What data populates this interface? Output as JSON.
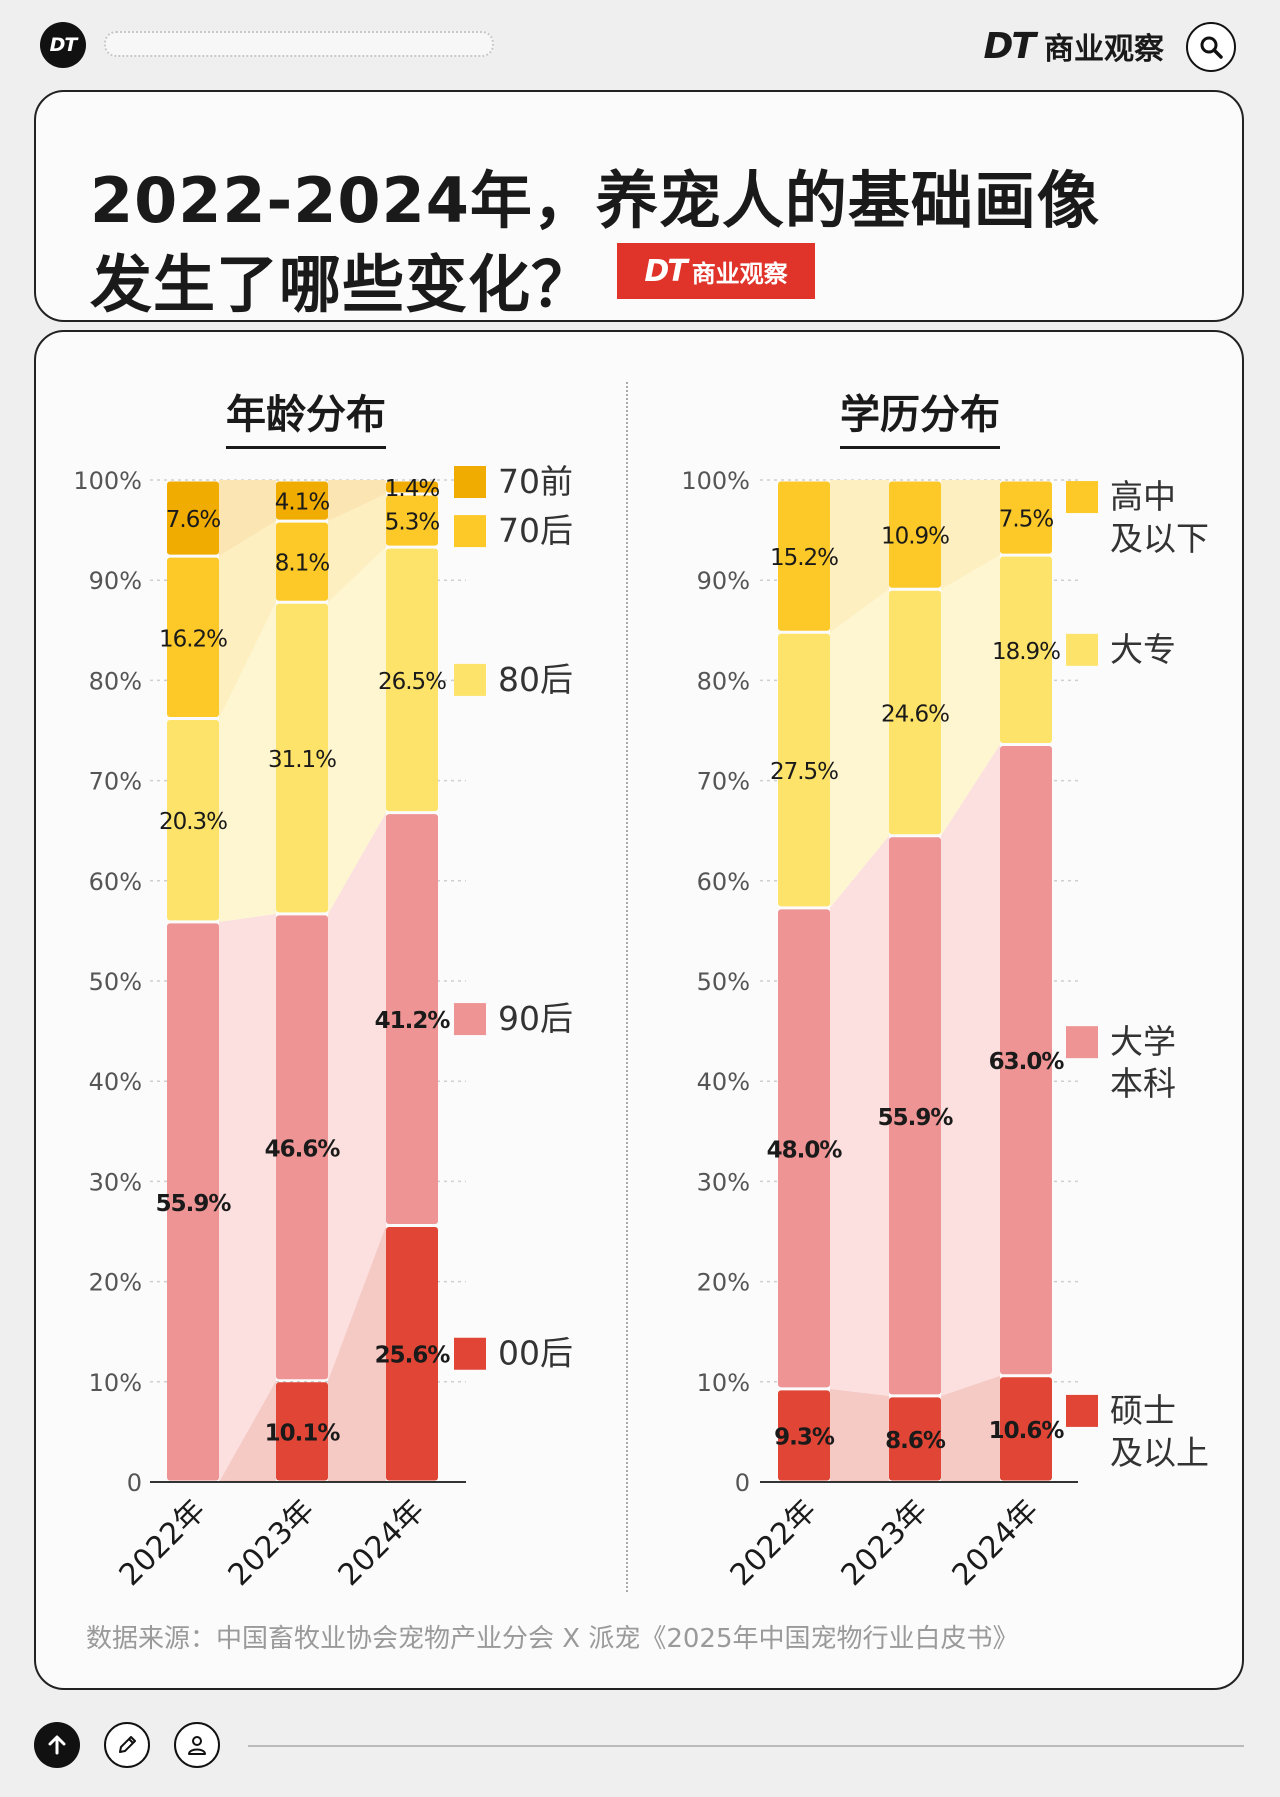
{
  "header": {
    "logo_text": "DT",
    "brand_dt": "DT",
    "brand_name": "商业观察"
  },
  "title": {
    "line1": "2022-2024年，养宠人的基础画像",
    "line2": "发生了哪些变化？",
    "badge_dt": "DT",
    "badge_name": "商业观察"
  },
  "source": "数据来源：中国畜牧业协会宠物产业分会 X 派宠《2025年中国宠物行业白皮书》",
  "chart_data": [
    {
      "type": "bar",
      "stacked": true,
      "title": "年龄分布",
      "categories": [
        "2022年",
        "2023年",
        "2024年"
      ],
      "ylim": [
        0,
        100
      ],
      "yticks": [
        "0",
        "10%",
        "20%",
        "30%",
        "40%",
        "50%",
        "60%",
        "70%",
        "80%",
        "90%",
        "100%"
      ],
      "series": [
        {
          "name": "00后",
          "values": [
            0,
            10.1,
            25.6
          ],
          "labels": [
            "",
            "10.1%",
            "25.6%"
          ],
          "color": "#e04535",
          "band": "#f5c9c4"
        },
        {
          "name": "90后",
          "values": [
            55.9,
            46.6,
            41.2
          ],
          "labels": [
            "55.9%",
            "46.6%",
            "41.2%"
          ],
          "color": "#ee9494",
          "band": "#fbe0df"
        },
        {
          "name": "80后",
          "values": [
            20.3,
            31.1,
            26.5
          ],
          "labels": [
            "20.3%",
            "31.1%",
            "26.5%"
          ],
          "color": "#fde36a",
          "band": "#fef6d0"
        },
        {
          "name": "70后",
          "values": [
            16.2,
            8.1,
            5.3
          ],
          "labels": [
            "16.2%",
            "8.1%",
            "5.3%"
          ],
          "color": "#fcc928",
          "band": "#fdefc0"
        },
        {
          "name": "70前",
          "values": [
            7.6,
            4.1,
            1.4
          ],
          "labels": [
            "7.6%",
            "4.1%",
            "1.4%"
          ],
          "color": "#f0ac00",
          "band": "#fbe6b3"
        }
      ]
    },
    {
      "type": "bar",
      "stacked": true,
      "title": "学历分布",
      "categories": [
        "2022年",
        "2023年",
        "2024年"
      ],
      "ylim": [
        0,
        100
      ],
      "yticks": [
        "0",
        "10%",
        "20%",
        "30%",
        "40%",
        "50%",
        "60%",
        "70%",
        "80%",
        "90%",
        "100%"
      ],
      "series": [
        {
          "name": "硕士及以上",
          "values": [
            9.3,
            8.6,
            10.6
          ],
          "labels": [
            "9.3%",
            "8.6%",
            "10.6%"
          ],
          "color": "#e04535",
          "band": "#f5c9c4"
        },
        {
          "name": "大学本科",
          "values": [
            48.0,
            55.9,
            63.0
          ],
          "labels": [
            "48.0%",
            "55.9%",
            "63.0%"
          ],
          "color": "#ee9494",
          "band": "#fbe0df"
        },
        {
          "name": "大专",
          "values": [
            27.5,
            24.6,
            18.9
          ],
          "labels": [
            "27.5%",
            "24.6%",
            "18.9%"
          ],
          "color": "#fde36a",
          "band": "#fef6d0"
        },
        {
          "name": "高中及以下",
          "values": [
            15.2,
            10.9,
            7.5
          ],
          "labels": [
            "15.2%",
            "10.9%",
            "7.5%"
          ],
          "color": "#fcc928",
          "band": "#fdefc0"
        }
      ]
    }
  ]
}
